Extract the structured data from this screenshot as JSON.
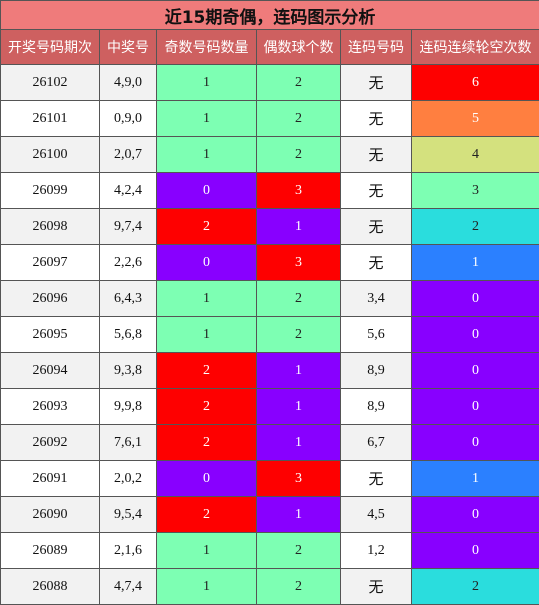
{
  "title": "近15期奇偶，连码图示分析",
  "headers": [
    "开奖号码期次",
    "中奖号",
    "奇数号码数量",
    "偶数球个数",
    "连码号码",
    "连码连续轮空次数"
  ],
  "colors": {
    "title_bg": "#ef7b7b",
    "header_bg": "#ce6060",
    "green": "#7dffb3",
    "red": "#fe0000",
    "purple": "#8800ff",
    "blue": "#2b80ff",
    "cyan": "#2adddd",
    "olive": "#d4e17e",
    "orange": "#ff7f40"
  },
  "rows": [
    {
      "issue": "26102",
      "numbers": "4,9,0",
      "odd": "1",
      "even": "2",
      "lian": "无",
      "gap": "6"
    },
    {
      "issue": "26101",
      "numbers": "0,9,0",
      "odd": "1",
      "even": "2",
      "lian": "无",
      "gap": "5"
    },
    {
      "issue": "26100",
      "numbers": "2,0,7",
      "odd": "1",
      "even": "2",
      "lian": "无",
      "gap": "4"
    },
    {
      "issue": "26099",
      "numbers": "4,2,4",
      "odd": "0",
      "even": "3",
      "lian": "无",
      "gap": "3"
    },
    {
      "issue": "26098",
      "numbers": "9,7,4",
      "odd": "2",
      "even": "1",
      "lian": "无",
      "gap": "2"
    },
    {
      "issue": "26097",
      "numbers": "2,2,6",
      "odd": "0",
      "even": "3",
      "lian": "无",
      "gap": "1"
    },
    {
      "issue": "26096",
      "numbers": "6,4,3",
      "odd": "1",
      "even": "2",
      "lian": "3,4",
      "gap": "0"
    },
    {
      "issue": "26095",
      "numbers": "5,6,8",
      "odd": "1",
      "even": "2",
      "lian": "5,6",
      "gap": "0"
    },
    {
      "issue": "26094",
      "numbers": "9,3,8",
      "odd": "2",
      "even": "1",
      "lian": "8,9",
      "gap": "0"
    },
    {
      "issue": "26093",
      "numbers": "9,9,8",
      "odd": "2",
      "even": "1",
      "lian": "8,9",
      "gap": "0"
    },
    {
      "issue": "26092",
      "numbers": "7,6,1",
      "odd": "2",
      "even": "1",
      "lian": "6,7",
      "gap": "0"
    },
    {
      "issue": "26091",
      "numbers": "2,0,2",
      "odd": "0",
      "even": "3",
      "lian": "无",
      "gap": "1"
    },
    {
      "issue": "26090",
      "numbers": "9,5,4",
      "odd": "2",
      "even": "1",
      "lian": "4,5",
      "gap": "0"
    },
    {
      "issue": "26089",
      "numbers": "2,1,6",
      "odd": "1",
      "even": "2",
      "lian": "1,2",
      "gap": "0"
    },
    {
      "issue": "26088",
      "numbers": "4,7,4",
      "odd": "1",
      "even": "2",
      "lian": "无",
      "gap": "2"
    }
  ]
}
